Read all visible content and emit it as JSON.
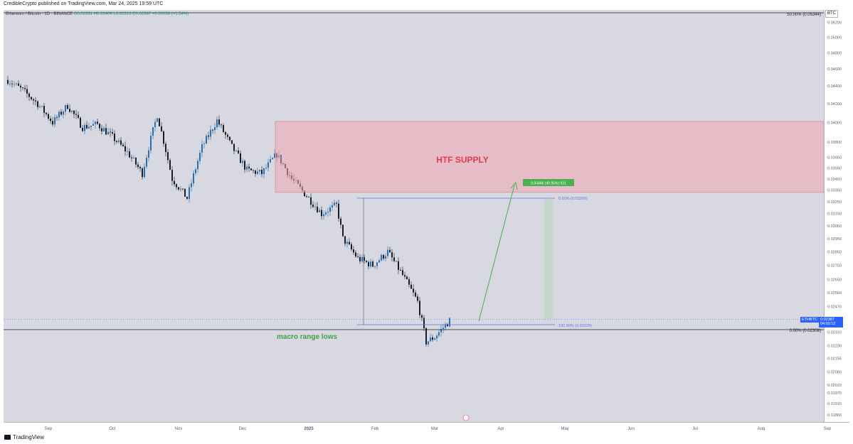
{
  "header": {
    "published": "CredibleCrypto published on TradingView.com, Mar 24, 2025 19:59 UTC"
  },
  "legend": {
    "symbol": "Ethereum / Bitcoin · 1D · BINANCE",
    "ohlc": "O0.02331 H0.02406 L0.02313 C0.02387 +0.00056 (+1.54%)"
  },
  "currency_badge": "BTC",
  "footer": {
    "brand": "TradingView"
  },
  "colors": {
    "background": "#d7d8e1",
    "up": "#26a69a",
    "down": "#1b1e27",
    "supply_zone": "#f2a6b2",
    "fib_line": "#6274e0",
    "arrow": "#4caf50",
    "price_tag": "#2962ff"
  },
  "chart_data": {
    "type": "candlestick",
    "title": "",
    "xlabel": "",
    "ylabel": "",
    "ylim": [
      0.01825,
      0.0537
    ],
    "y_ticks": [
      "0.05200",
      "0.05000",
      "0.04800",
      "0.04600",
      "0.04400",
      "0.04200",
      "0.04000",
      "0.03800",
      "0.03650",
      "0.03550",
      "0.03450",
      "0.03350",
      "0.03250",
      "0.03150",
      "0.03050",
      "0.02950",
      "0.02850",
      "0.02750",
      "0.02650",
      "0.02560",
      "0.02470",
      "0.02390",
      "0.02310",
      "0.02230",
      "0.02155",
      "0.02080",
      "0.02010",
      "0.01970",
      "0.01915",
      "0.01860"
    ],
    "x_ticks": [
      "Sep",
      "Oct",
      "Nov",
      "Dec",
      "2025",
      "Feb",
      "Mar",
      "Apr",
      "May",
      "Jun",
      "Jul",
      "Aug",
      "Sep"
    ],
    "approx_close_path": [
      [
        "2024-08-29",
        0.0447
      ],
      [
        "2024-09-05",
        0.0435
      ],
      [
        "2024-09-12",
        0.042
      ],
      [
        "2024-09-19",
        0.04
      ],
      [
        "2024-09-26",
        0.0418
      ],
      [
        "2024-10-03",
        0.0395
      ],
      [
        "2024-10-10",
        0.0398
      ],
      [
        "2024-10-17",
        0.0385
      ],
      [
        "2024-10-24",
        0.037
      ],
      [
        "2024-10-31",
        0.035
      ],
      [
        "2024-11-07",
        0.0408
      ],
      [
        "2024-11-14",
        0.0345
      ],
      [
        "2024-11-21",
        0.0328
      ],
      [
        "2024-11-28",
        0.0375
      ],
      [
        "2024-12-05",
        0.0402
      ],
      [
        "2024-12-12",
        0.0375
      ],
      [
        "2024-12-19",
        0.0353
      ],
      [
        "2024-12-26",
        0.035
      ],
      [
        "2025-01-02",
        0.0368
      ],
      [
        "2025-01-09",
        0.0345
      ],
      [
        "2025-01-16",
        0.033
      ],
      [
        "2025-01-23",
        0.0315
      ],
      [
        "2025-01-30",
        0.0322
      ],
      [
        "2025-02-02",
        0.0295
      ],
      [
        "2025-02-09",
        0.028
      ],
      [
        "2025-02-16",
        0.0275
      ],
      [
        "2025-02-23",
        0.0285
      ],
      [
        "2025-03-02",
        0.0268
      ],
      [
        "2025-03-09",
        0.025
      ],
      [
        "2025-03-13",
        0.0225
      ],
      [
        "2025-03-17",
        0.0228
      ],
      [
        "2025-03-24",
        0.0238
      ]
    ],
    "annotations": {
      "supply_zone_label": "HTF SUPPLY",
      "macro_label": "macro range lows",
      "fib_top_label": "0.00% (0.03269)",
      "fib_bottom_label": "100.00% (0.02339)",
      "target_label": "0.00466 (40.95%) 931",
      "level_top_label": "50.00% (0.05344)",
      "level_bottom_label": "0.00% (0.02308)",
      "price_tag_symbol": "ETHBTC",
      "price_tag_value": "0.02387",
      "price_tag_timer": "04:00:12"
    },
    "current_price": 0.02387,
    "levels": {
      "top": 0.05344,
      "bottom": 0.02308
    },
    "supply_zone": {
      "top": 0.0401,
      "bottom": 0.0333
    }
  }
}
